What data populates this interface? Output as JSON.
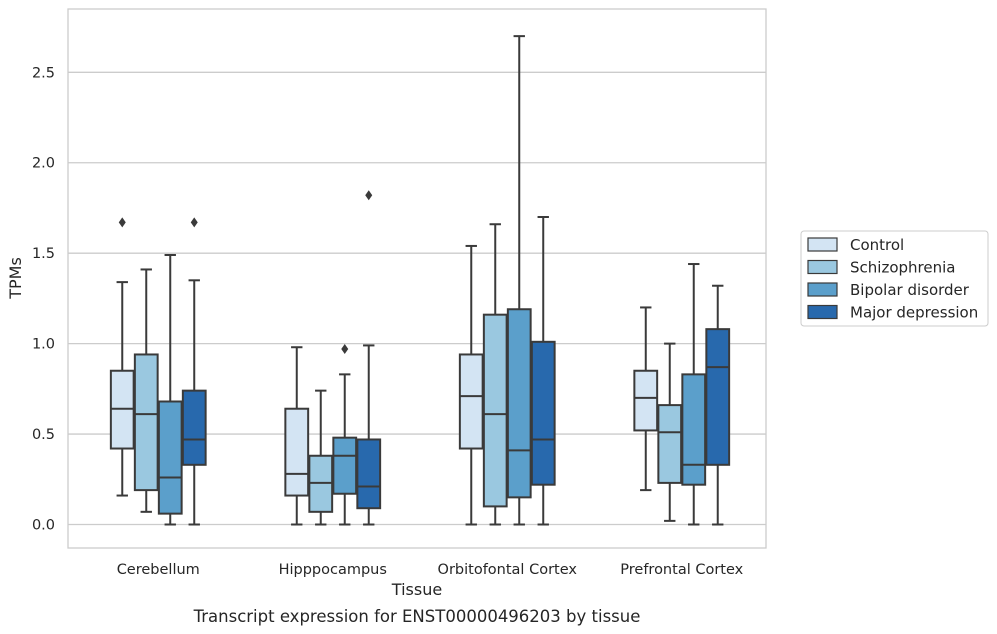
{
  "chart_data": {
    "type": "boxplot",
    "caption": "Transcript expression for ENST00000496203 by tissue",
    "xlabel": "Tissue",
    "ylabel": "TPMs",
    "ylim": [
      -0.13,
      2.85
    ],
    "yticks": [
      0.0,
      0.5,
      1.0,
      1.5,
      2.0,
      2.5
    ],
    "ytick_labels": [
      "0.0",
      "0.5",
      "1.0",
      "1.5",
      "2.0",
      "2.5"
    ],
    "grid": "horizontal",
    "legend_position": "right",
    "categories": [
      "Cerebellum",
      "Hipppocampus",
      "Orbitofontal Cortex",
      "Prefrontal Cortex"
    ],
    "series": [
      {
        "name": "Control",
        "color": "#d3e4f3",
        "boxes": [
          {
            "whislo": 0.16,
            "q1": 0.42,
            "med": 0.64,
            "q3": 0.85,
            "whishi": 1.34,
            "fliers": [
              1.67
            ]
          },
          {
            "whislo": 0.0,
            "q1": 0.16,
            "med": 0.28,
            "q3": 0.64,
            "whishi": 0.98,
            "fliers": []
          },
          {
            "whislo": 0.0,
            "q1": 0.42,
            "med": 0.71,
            "q3": 0.94,
            "whishi": 1.54,
            "fliers": []
          },
          {
            "whislo": 0.19,
            "q1": 0.52,
            "med": 0.7,
            "q3": 0.85,
            "whishi": 1.2,
            "fliers": []
          }
        ]
      },
      {
        "name": "Schizophrenia",
        "color": "#9ac8e0",
        "boxes": [
          {
            "whislo": 0.07,
            "q1": 0.19,
            "med": 0.61,
            "q3": 0.94,
            "whishi": 1.41,
            "fliers": []
          },
          {
            "whislo": 0.0,
            "q1": 0.07,
            "med": 0.23,
            "q3": 0.38,
            "whishi": 0.74,
            "fliers": []
          },
          {
            "whislo": 0.0,
            "q1": 0.1,
            "med": 0.61,
            "q3": 1.16,
            "whishi": 1.66,
            "fliers": []
          },
          {
            "whislo": 0.02,
            "q1": 0.23,
            "med": 0.51,
            "q3": 0.66,
            "whishi": 1.0,
            "fliers": []
          }
        ]
      },
      {
        "name": "Bipolar disorder",
        "color": "#5b9fcb",
        "boxes": [
          {
            "whislo": 0.0,
            "q1": 0.06,
            "med": 0.26,
            "q3": 0.68,
            "whishi": 1.49,
            "fliers": []
          },
          {
            "whislo": 0.0,
            "q1": 0.17,
            "med": 0.38,
            "q3": 0.48,
            "whishi": 0.83,
            "fliers": [
              0.97
            ]
          },
          {
            "whislo": 0.0,
            "q1": 0.15,
            "med": 0.41,
            "q3": 1.19,
            "whishi": 2.7,
            "fliers": []
          },
          {
            "whislo": 0.0,
            "q1": 0.22,
            "med": 0.33,
            "q3": 0.83,
            "whishi": 1.44,
            "fliers": []
          }
        ]
      },
      {
        "name": "Major depression",
        "color": "#2869ad",
        "boxes": [
          {
            "whislo": 0.0,
            "q1": 0.33,
            "med": 0.47,
            "q3": 0.74,
            "whishi": 1.35,
            "fliers": [
              1.67
            ]
          },
          {
            "whislo": 0.0,
            "q1": 0.09,
            "med": 0.21,
            "q3": 0.47,
            "whishi": 0.99,
            "fliers": [
              1.82
            ]
          },
          {
            "whislo": 0.0,
            "q1": 0.22,
            "med": 0.47,
            "q3": 1.01,
            "whishi": 1.7,
            "fliers": []
          },
          {
            "whislo": 0.0,
            "q1": 0.33,
            "med": 0.87,
            "q3": 1.08,
            "whishi": 1.32,
            "fliers": []
          }
        ]
      }
    ],
    "style": {
      "line_color": "#3a3a3a",
      "grid_color": "#cccccc",
      "frame_color": "#cccccc"
    }
  }
}
